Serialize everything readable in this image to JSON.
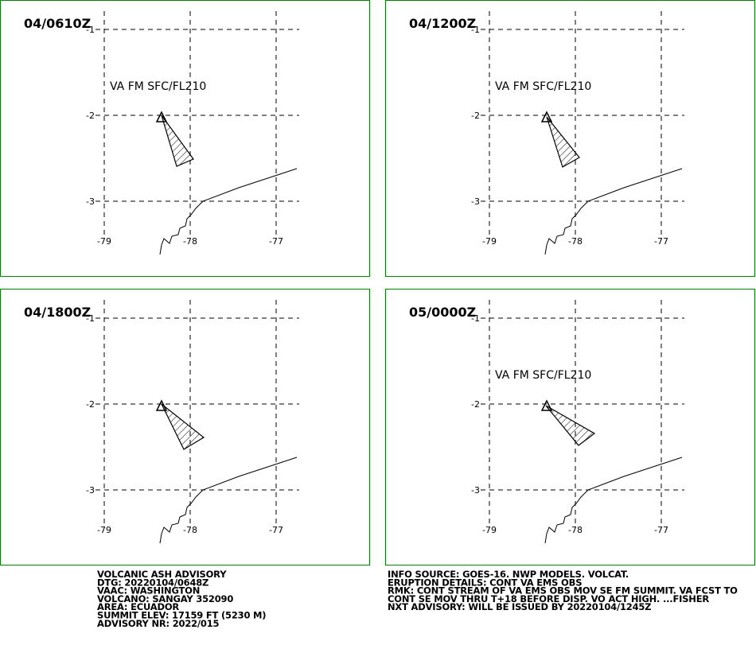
{
  "panels": [
    {
      "title": "04/0610Z",
      "label": "VA FM SFC/FL210"
    },
    {
      "title": "04/1200Z",
      "label": "VA FM SFC/FL210"
    },
    {
      "title": "04/1800Z"
    },
    {
      "title": "05/0000Z",
      "label": "VA FM SFC/FL210"
    }
  ],
  "lat_labels": [
    "-1",
    "-2",
    "-3"
  ],
  "lon_labels": [
    "-79",
    "-78",
    "-77"
  ],
  "footer_left": [
    "VOLCANIC ASH ADVISORY",
    "DTG: 20220104/0648Z",
    "VAAC: WASHINGTON",
    "VOLCANO: SANGAY 352090",
    "AREA: ECUADOR",
    "SUMMIT ELEV: 17159 FT (5230 M)",
    "ADVISORY NR: 2022/015"
  ],
  "footer_right": [
    "INFO SOURCE: GOES-16. NWP MODELS. VOLCAT.",
    "ERUPTION DETAILS: CONT VA EMS OBS",
    "RMK: CONT STREAM OF VA EMS OBS MOV SE FM SUMMIT. VA FCST TO",
    "CONT SE MOV THRU T+18 BEFORE DISP. VO ACT HIGH. ...FISHER",
    "NXT ADVISORY: WILL BE ISSUED BY 20220104/1245Z"
  ]
}
